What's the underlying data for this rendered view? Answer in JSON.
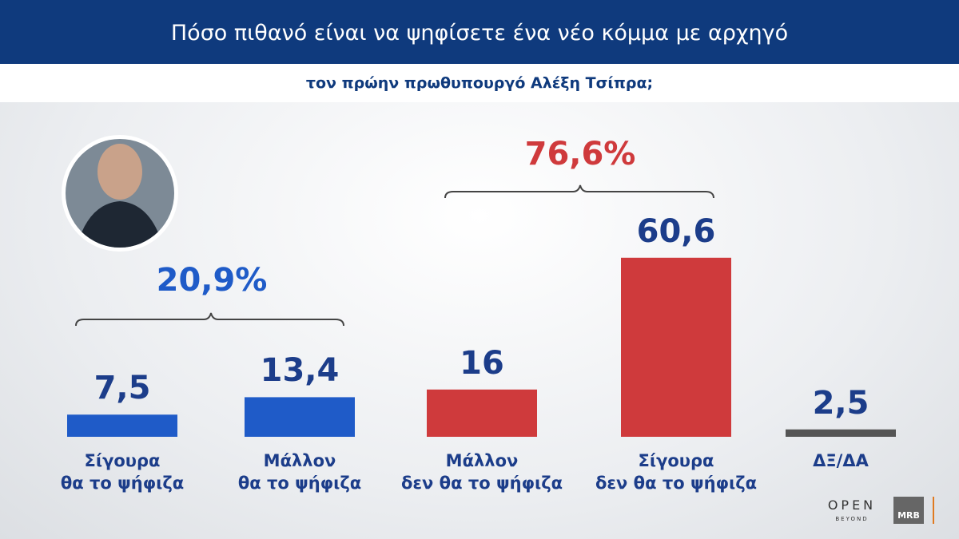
{
  "chart_data": {
    "type": "bar",
    "title": "Πόσο πιθανό είναι να ψηφίσετε ένα νέο κόμμα με αρχηγό",
    "subtitle": "τον πρώην πρωθυπουργό Αλέξη Τσίπρα;",
    "categories": [
      "Σίγουρα\nθα το ψήφιζα",
      "Μάλλον\nθα το ψήφιζα",
      "Μάλλον\nδεν θα το ψήφιζα",
      "Σίγουρα\nδεν θα το ψήφιζα",
      "ΔΞ/ΔΑ"
    ],
    "values": [
      7.5,
      13.4,
      16,
      60.6,
      2.5
    ],
    "value_labels": [
      "7,5",
      "13,4",
      "16",
      "60,6",
      "2,5"
    ],
    "colors": [
      "#1f5bc8",
      "#1f5bc8",
      "#cf3a3c",
      "#cf3a3c",
      "#555555"
    ],
    "annotations": [
      {
        "text": "20,9%",
        "color": "#1f5bc8"
      },
      {
        "text": "76,6%",
        "color": "#cf3a3c"
      }
    ]
  },
  "logos": {
    "channel": "OPEN",
    "channel_sub": "BEYOND",
    "pollster": "MRB"
  }
}
